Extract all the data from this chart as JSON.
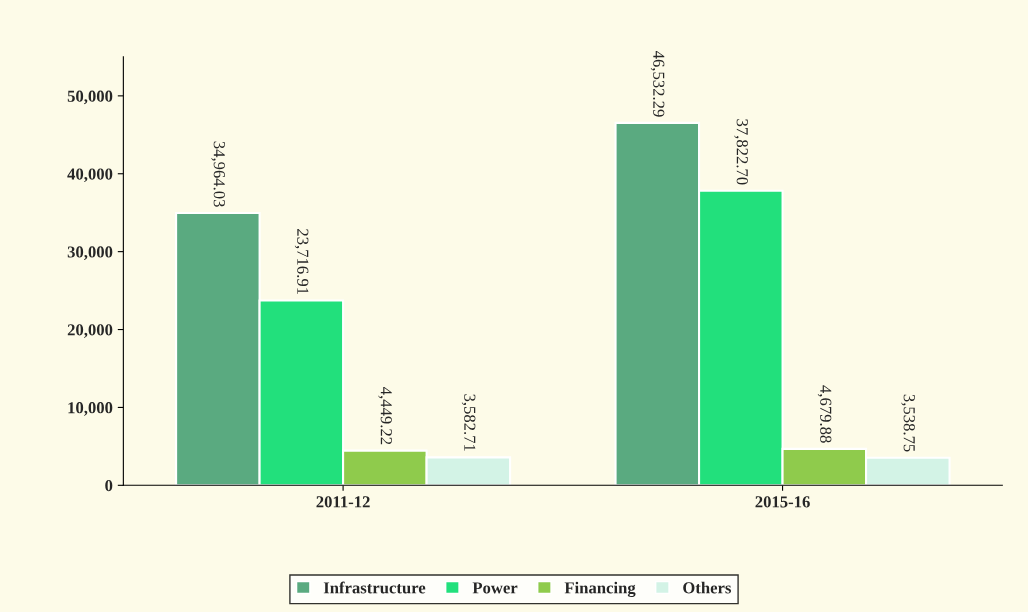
{
  "chart_data": {
    "type": "bar",
    "categories": [
      "2011-12",
      "2015-16"
    ],
    "series": [
      {
        "name": "Infrastructure",
        "color": "#5aaa80",
        "values": [
          34964.03,
          46532.29
        ],
        "value_labels": [
          "34,964.03",
          "46,532.29"
        ]
      },
      {
        "name": "Power",
        "color": "#22e07c",
        "values": [
          23716.91,
          37822.7
        ],
        "value_labels": [
          "23,716.91",
          "37,822.70"
        ]
      },
      {
        "name": "Financing",
        "color": "#8fcb4c",
        "values": [
          4449.22,
          4679.88
        ],
        "value_labels": [
          "4,449.22",
          "4,679.88"
        ]
      },
      {
        "name": "Others",
        "color": "#d3f3e6",
        "values": [
          3582.71,
          3538.75
        ],
        "value_labels": [
          "3,582.71",
          "3,538.75"
        ]
      }
    ],
    "ylim": [
      0,
      55000
    ],
    "yticks": [
      {
        "value": 0,
        "label": "0"
      },
      {
        "value": 10000,
        "label": "10,000"
      },
      {
        "value": 20000,
        "label": "20,000"
      },
      {
        "value": 30000,
        "label": "30,000"
      },
      {
        "value": 40000,
        "label": "40,000"
      },
      {
        "value": 50000,
        "label": "50,000"
      }
    ],
    "grid": false,
    "legend": "bottom"
  }
}
